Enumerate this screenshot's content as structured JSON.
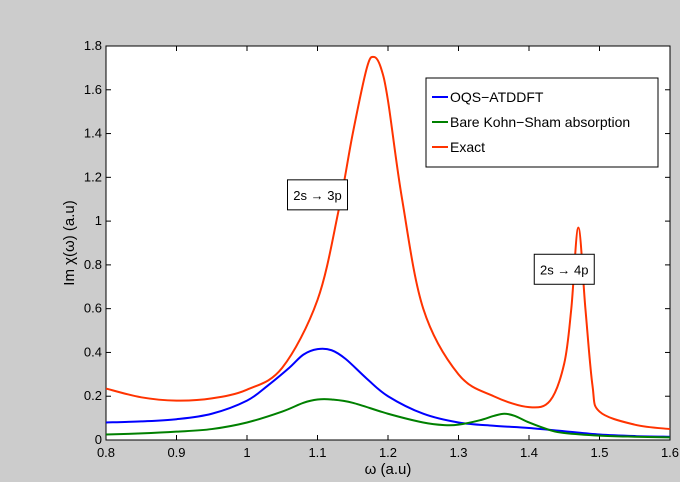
{
  "chart_data": {
    "type": "line",
    "title": "",
    "xlabel": "ω (a.u)",
    "ylabel": "Im χ(ω) (a.u)",
    "xlim": [
      0.8,
      1.6
    ],
    "ylim": [
      0,
      1.8
    ],
    "xticks": [
      0.8,
      0.9,
      1,
      1.1,
      1.2,
      1.3,
      1.4,
      1.5,
      1.6
    ],
    "xtick_labels": [
      "0.8",
      "0.9",
      "1",
      "1.1",
      "1.2",
      "1.3",
      "1.4",
      "1.5",
      "1.6"
    ],
    "yticks": [
      0,
      0.2,
      0.4,
      0.6,
      0.8,
      1,
      1.2,
      1.4,
      1.6,
      1.8
    ],
    "ytick_labels": [
      "0",
      "0.2",
      "0.4",
      "0.6",
      "0.8",
      "1",
      "1.2",
      "1.4",
      "1.6",
      "1.8"
    ],
    "grid": false,
    "legend_position": "top-right",
    "series": [
      {
        "name": "OQS−ATDDFT",
        "color": "#0000ff",
        "x": [
          0.8,
          0.85,
          0.9,
          0.95,
          1.0,
          1.03,
          1.06,
          1.08,
          1.1,
          1.12,
          1.14,
          1.17,
          1.2,
          1.25,
          1.3,
          1.35,
          1.4,
          1.45,
          1.5,
          1.55,
          1.6
        ],
        "y": [
          0.08,
          0.085,
          0.095,
          0.12,
          0.18,
          0.25,
          0.33,
          0.39,
          0.415,
          0.41,
          0.37,
          0.28,
          0.2,
          0.12,
          0.08,
          0.065,
          0.055,
          0.04,
          0.025,
          0.018,
          0.015
        ]
      },
      {
        "name": "Bare Kohn−Sham absorption",
        "color": "#008000",
        "x": [
          0.8,
          0.85,
          0.9,
          0.95,
          1.0,
          1.05,
          1.08,
          1.1,
          1.12,
          1.15,
          1.2,
          1.25,
          1.28,
          1.3,
          1.33,
          1.35,
          1.365,
          1.38,
          1.4,
          1.43,
          1.45,
          1.5,
          1.55,
          1.6
        ],
        "y": [
          0.025,
          0.03,
          0.038,
          0.05,
          0.08,
          0.13,
          0.17,
          0.185,
          0.185,
          0.17,
          0.12,
          0.08,
          0.068,
          0.07,
          0.09,
          0.11,
          0.12,
          0.11,
          0.08,
          0.045,
          0.032,
          0.02,
          0.015,
          0.012
        ]
      },
      {
        "name": "Exact",
        "color": "#ff3300",
        "x": [
          0.8,
          0.85,
          0.9,
          0.95,
          1.0,
          1.05,
          1.1,
          1.13,
          1.15,
          1.17,
          1.18,
          1.19,
          1.2,
          1.22,
          1.25,
          1.3,
          1.35,
          1.4,
          1.43,
          1.45,
          1.46,
          1.47,
          1.48,
          1.49,
          1.5,
          1.55,
          1.6
        ],
        "y": [
          0.235,
          0.195,
          0.18,
          0.19,
          0.23,
          0.33,
          0.64,
          1.05,
          1.4,
          1.7,
          1.75,
          1.7,
          1.55,
          1.1,
          0.6,
          0.3,
          0.2,
          0.15,
          0.18,
          0.35,
          0.6,
          0.97,
          0.6,
          0.25,
          0.13,
          0.07,
          0.05
        ]
      }
    ],
    "annotations": [
      {
        "text": "2s → 3p",
        "x": 1.1,
        "y": 1.12
      },
      {
        "text": "2s → 4p",
        "x": 1.45,
        "y": 0.78
      }
    ]
  }
}
